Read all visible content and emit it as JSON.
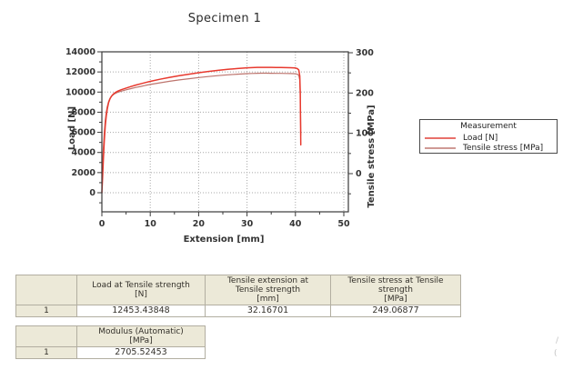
{
  "page": {
    "background": "#ffffff",
    "clipped_edge_text": [
      "/",
      "("
    ]
  },
  "chart_data": {
    "type": "line",
    "title": "Specimen 1",
    "xlabel": "Extension [mm]",
    "ylabel_left": "Load [N]",
    "ylabel_right": "Tensile stress [MPa]",
    "xlim": [
      0,
      52
    ],
    "xticks": [
      0,
      10,
      20,
      30,
      40,
      50
    ],
    "xminorticks": [
      5,
      15,
      25,
      35,
      45
    ],
    "ylim_left": [
      -2000,
      14000
    ],
    "yticks_left": [
      0,
      2000,
      4000,
      6000,
      8000,
      10000,
      12000,
      14000
    ],
    "yminorticks_left": [
      -1000,
      1000,
      3000,
      5000,
      7000,
      9000,
      11000,
      13000
    ],
    "ylim_right": [
      -100,
      300
    ],
    "yticks_right": [
      0,
      100,
      200,
      300
    ],
    "yminorticks_right": [
      -50,
      50,
      150,
      250
    ],
    "grid": "dotted",
    "grid_color": "#a8a8a8",
    "axis_color": "#3a3a3a",
    "legend_position": "right-outside",
    "series": [
      {
        "name": "Load [N]",
        "axis": "left",
        "color": "#e8392e",
        "width": 1.5,
        "x": [
          0,
          0.15,
          0.3,
          0.5,
          0.7,
          0.9,
          1.1,
          1.4,
          1.7,
          2.0,
          2.4,
          2.8,
          3.2,
          4,
          5,
          6,
          7,
          8,
          9,
          10,
          12,
          14,
          16,
          18,
          20,
          22,
          24,
          26,
          28,
          30,
          31,
          32.17,
          33,
          34,
          35,
          36,
          37,
          38,
          39,
          40,
          40.4,
          40.7,
          40.9,
          41.0,
          41.05,
          41.1
        ],
        "y": [
          0,
          1500,
          3200,
          5200,
          6600,
          7600,
          8300,
          8950,
          9350,
          9600,
          9820,
          9960,
          10070,
          10230,
          10400,
          10550,
          10690,
          10820,
          10950,
          11060,
          11270,
          11460,
          11630,
          11780,
          11920,
          12050,
          12160,
          12260,
          12340,
          12410,
          12430,
          12453,
          12458,
          12458,
          12452,
          12445,
          12437,
          12428,
          12415,
          12390,
          12330,
          12200,
          11600,
          10000,
          7500,
          4750
        ]
      },
      {
        "name": "Tensile stress [MPa]",
        "axis": "right",
        "color": "#bd746d",
        "width": 1.2,
        "x": [
          0,
          0.15,
          0.3,
          0.5,
          0.7,
          0.9,
          1.1,
          1.4,
          1.7,
          2.0,
          2.4,
          2.8,
          3.2,
          4,
          5,
          6,
          7,
          8,
          9,
          10,
          12,
          14,
          16,
          18,
          20,
          22,
          24,
          26,
          28,
          30,
          31,
          32.17,
          33,
          34,
          35,
          36,
          37,
          38,
          39,
          40,
          40.4,
          40.7,
          40.9,
          41.0,
          41.05,
          41.1
        ],
        "y": [
          0,
          30,
          64,
          104,
          132,
          152,
          166,
          179,
          187,
          192,
          196.4,
          199.2,
          201.4,
          204.6,
          208,
          211,
          213.8,
          216.4,
          219,
          221.2,
          225.4,
          229.2,
          232.6,
          235.6,
          238.4,
          241,
          243.2,
          245.2,
          246.8,
          248.2,
          248.6,
          249.07,
          249.2,
          249.2,
          249,
          248.9,
          248.7,
          248.6,
          248.3,
          247.8,
          246.6,
          244,
          232,
          200,
          150,
          95
        ]
      }
    ]
  },
  "legend": {
    "title": "Measurement",
    "items": [
      {
        "label": "Load [N]",
        "color": "#e8706a"
      },
      {
        "label": "Tensile stress [MPa]",
        "color": "#cf9a95"
      }
    ]
  },
  "results_table": {
    "headers": [
      "",
      "Load at Tensile strength\n[N]",
      "Tensile extension at\nTensile strength\n[mm]",
      "Tensile stress at Tensile\nstrength\n[MPa]"
    ],
    "rows": [
      [
        "1",
        "12453.43848",
        "32.16701",
        "249.06877"
      ]
    ]
  },
  "modulus_table": {
    "headers": [
      "",
      "Modulus (Automatic)\n[MPa]"
    ],
    "rows": [
      [
        "1",
        "2705.52453"
      ]
    ]
  }
}
